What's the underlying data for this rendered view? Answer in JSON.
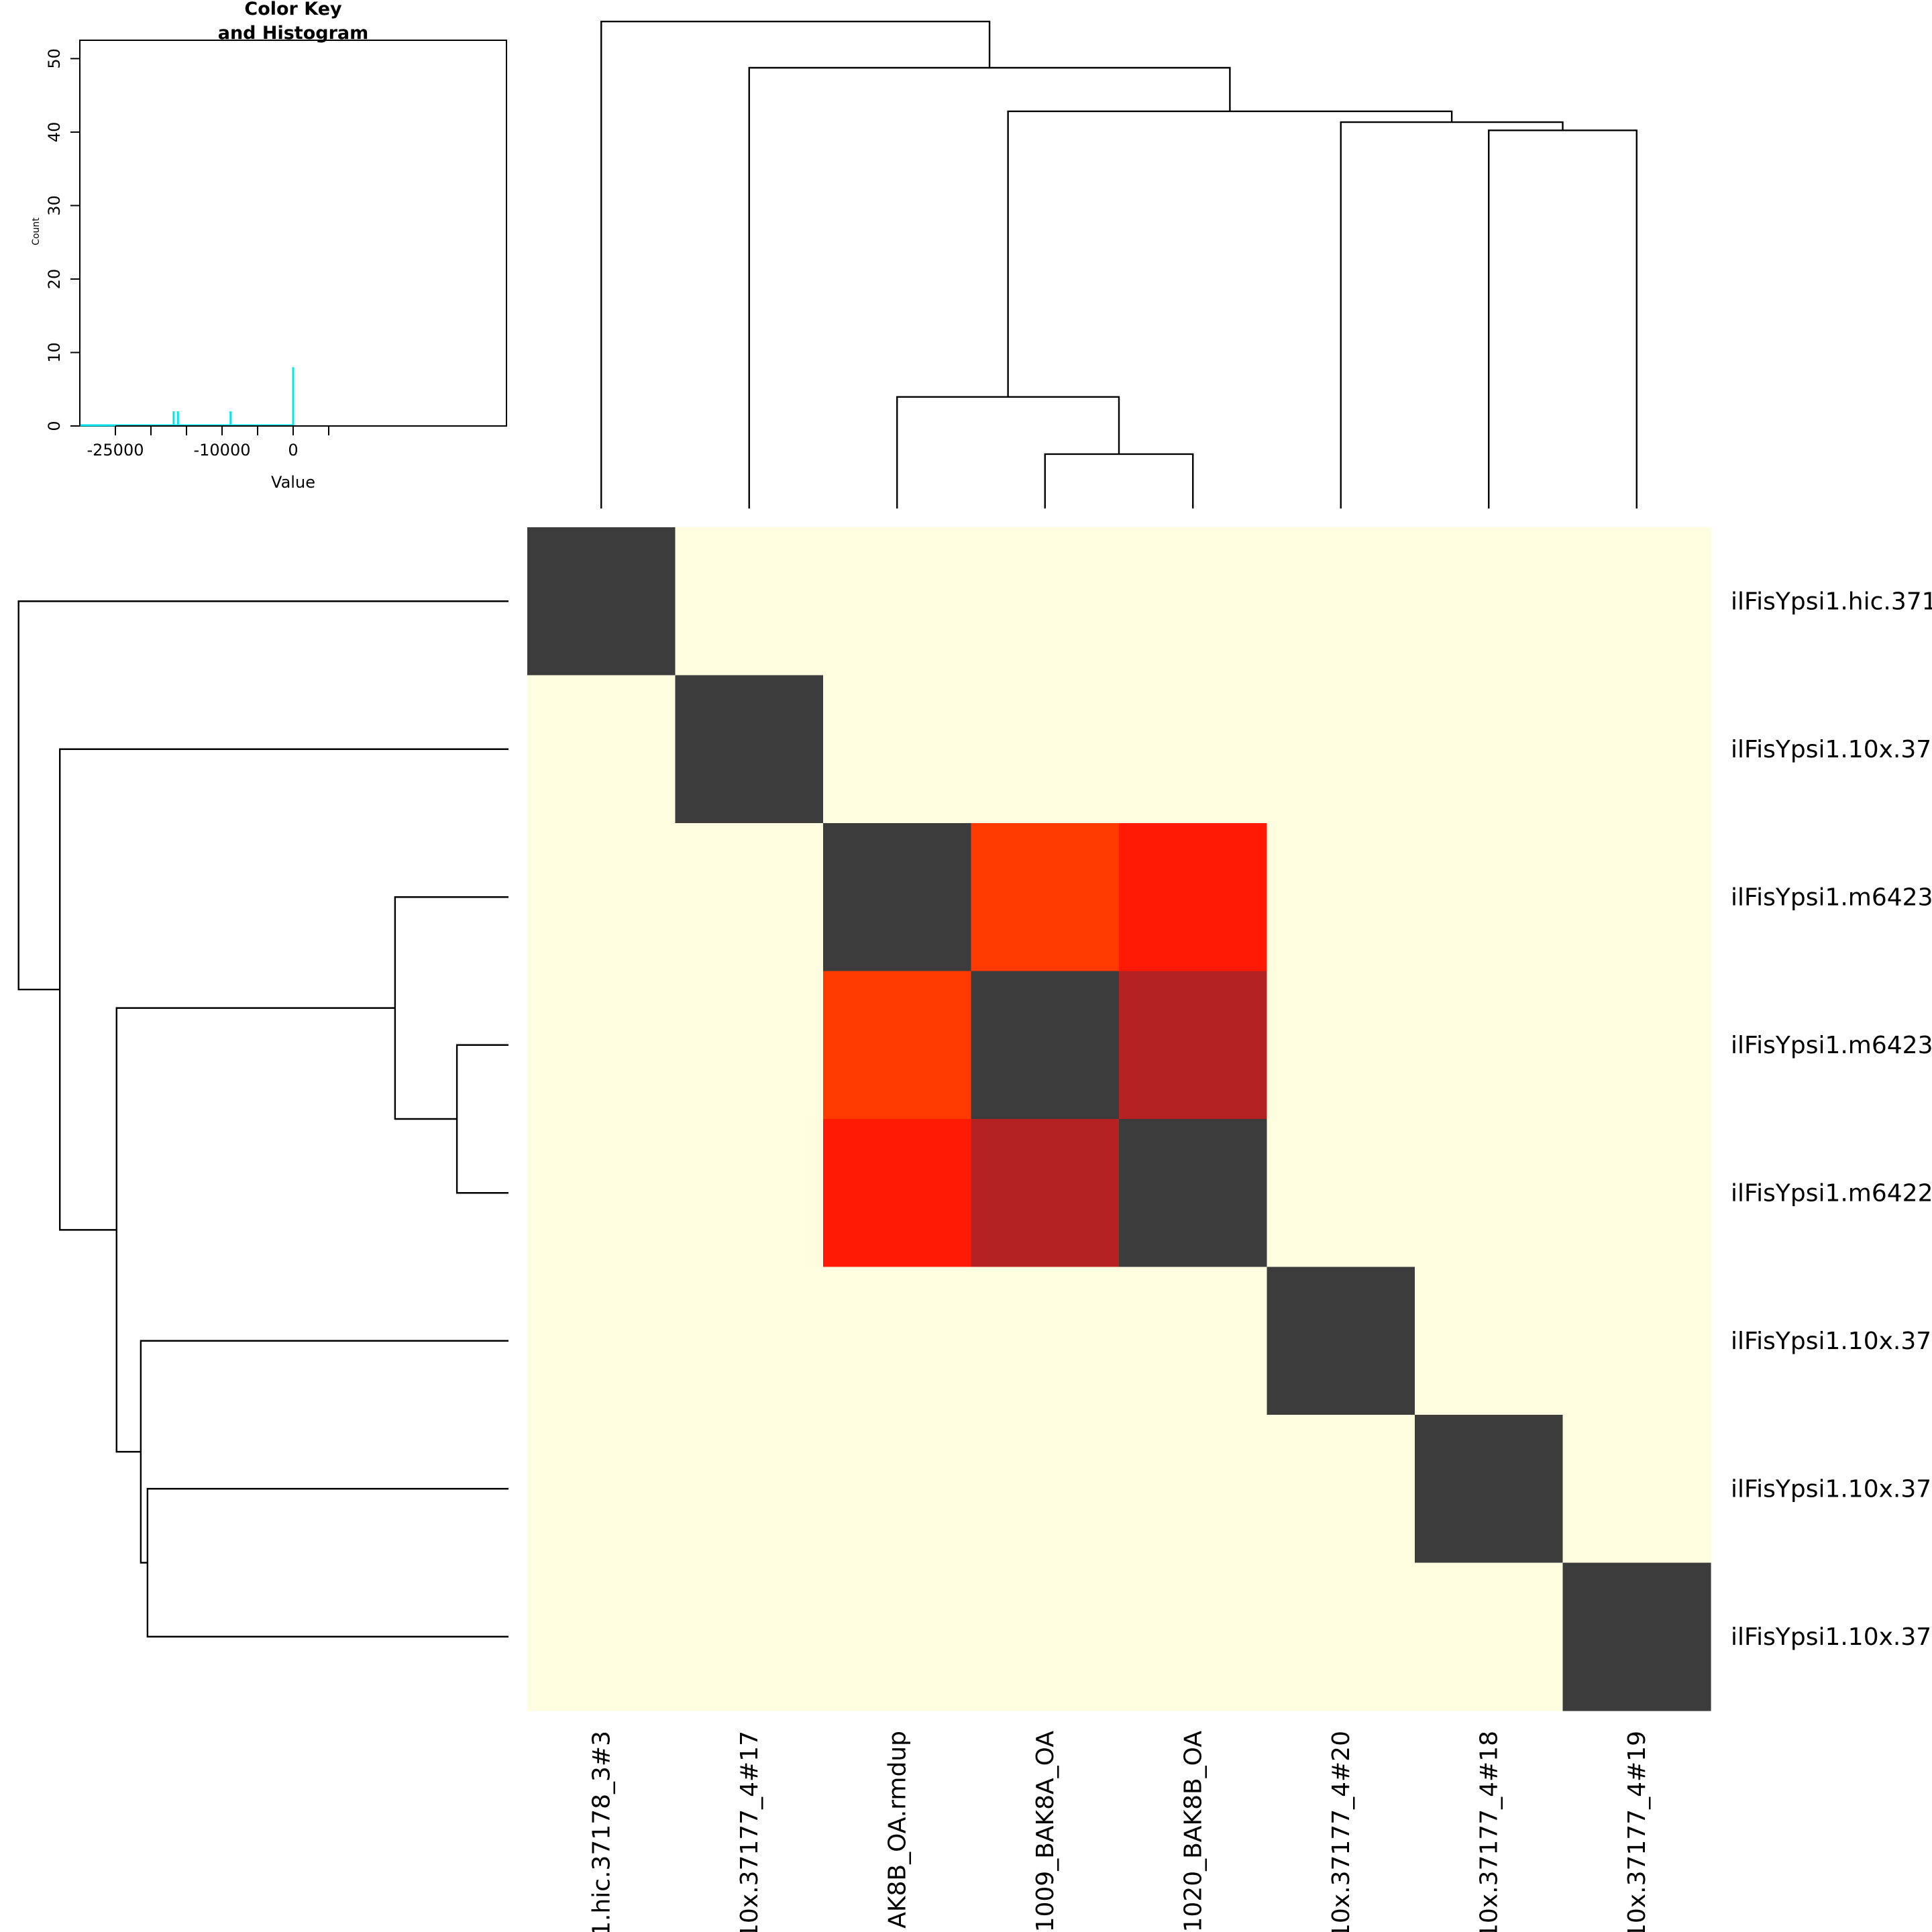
{
  "chart_data": [
    {
      "type": "heatmap",
      "title": "",
      "row_labels": [
        "ilFisYpsi1.hic.371",
        "ilFisYpsi1.10x.37",
        "ilFisYpsi1.m6423",
        "ilFisYpsi1.m6423",
        "ilFisYpsi1.m6422",
        "ilFisYpsi1.10x.37",
        "ilFisYpsi1.10x.37",
        "ilFisYpsi1.10x.37"
      ],
      "col_labels": [
        "1.hic.37178_3#3",
        "10x.37177_4#17",
        "AK8B_OA.rmdup",
        "1009_BAK8A_OA",
        "1020_BAK8B_OA",
        "10x.37177_4#20",
        "10x.37177_4#18",
        "10x.37177_4#19"
      ],
      "matrix": [
        [
          "diag",
          "bg",
          "bg",
          "bg",
          "bg",
          "bg",
          "bg",
          "bg"
        ],
        [
          "bg",
          "diag",
          "bg",
          "bg",
          "bg",
          "bg",
          "bg",
          "bg"
        ],
        [
          "bg",
          "bg",
          "diag",
          "orange",
          "red",
          "bg",
          "bg",
          "bg"
        ],
        [
          "bg",
          "bg",
          "orange",
          "diag",
          "darkred",
          "bg",
          "bg",
          "bg"
        ],
        [
          "bg",
          "bg",
          "red",
          "darkred",
          "diag",
          "bg",
          "bg",
          "bg"
        ],
        [
          "bg",
          "bg",
          "bg",
          "bg",
          "bg",
          "diag",
          "bg",
          "bg"
        ],
        [
          "bg",
          "bg",
          "bg",
          "bg",
          "bg",
          "bg",
          "diag",
          "bg"
        ],
        [
          "bg",
          "bg",
          "bg",
          "bg",
          "bg",
          "bg",
          "bg",
          "diag"
        ]
      ],
      "palette": {
        "diag": "#3c3c3c",
        "bg": "#fefde0",
        "orange": "#ff3a00",
        "red": "#ff1a05",
        "darkred": "#b52224",
        "line": "#000000"
      },
      "col_dendrogram": {
        "merges": [
          {
            "a": 3,
            "b": 4,
            "height": 1.0
          },
          {
            "a": 2,
            "b": "m0",
            "height": 2.05
          },
          {
            "a": 6,
            "b": 7,
            "height": 6.95
          },
          {
            "a": 5,
            "b": "m2",
            "height": 7.1
          },
          {
            "a": "m1",
            "b": "m3",
            "height": 7.3
          },
          {
            "a": 1,
            "b": "m4",
            "height": 8.1
          },
          {
            "a": 0,
            "b": "m5",
            "height": 8.95
          }
        ],
        "max_height": 9.0
      },
      "row_dendrogram": {
        "merges": [
          {
            "a": 3,
            "b": 4,
            "height": 1.0
          },
          {
            "a": 2,
            "b": "m0",
            "height": 2.2
          },
          {
            "a": 6,
            "b": 7,
            "height": 7.0
          },
          {
            "a": 5,
            "b": "m2",
            "height": 7.13
          },
          {
            "a": "m1",
            "b": "m3",
            "height": 7.6
          },
          {
            "a": 1,
            "b": "m4",
            "height": 8.7
          },
          {
            "a": 0,
            "b": "m5",
            "height": 9.5
          }
        ],
        "max_height": 9.6
      }
    },
    {
      "type": "histogram",
      "title": "Color Key\nand Histogram",
      "title_lines": [
        "Color Key",
        "and Histogram"
      ],
      "xlabel": "Value",
      "ylabel": "Count",
      "xlim": [
        -30000,
        30000
      ],
      "ylim": [
        0,
        52.5
      ],
      "x_ticks": [
        -25000,
        -20000,
        -15000,
        -10000,
        -5000,
        0,
        5000
      ],
      "x_tick_labels": [
        {
          "value": -25000,
          "label": "-25000"
        },
        {
          "value": -10000,
          "label": "-10000"
        },
        {
          "value": 0,
          "label": "0"
        }
      ],
      "y_ticks": [
        {
          "value": 0,
          "label": "0"
        },
        {
          "value": 10,
          "label": "10"
        },
        {
          "value": 20,
          "label": "20"
        },
        {
          "value": 30,
          "label": "30"
        },
        {
          "value": 40,
          "label": "40"
        },
        {
          "value": 50,
          "label": "50"
        }
      ],
      "line_color": "#00e5ee",
      "baseline": [
        -30000,
        0
      ],
      "bars": [
        {
          "x": -16800,
          "count": 2
        },
        {
          "x": -16200,
          "count": 2
        },
        {
          "x": -8800,
          "count": 2
        },
        {
          "x": 0,
          "count": 8
        }
      ]
    }
  ]
}
